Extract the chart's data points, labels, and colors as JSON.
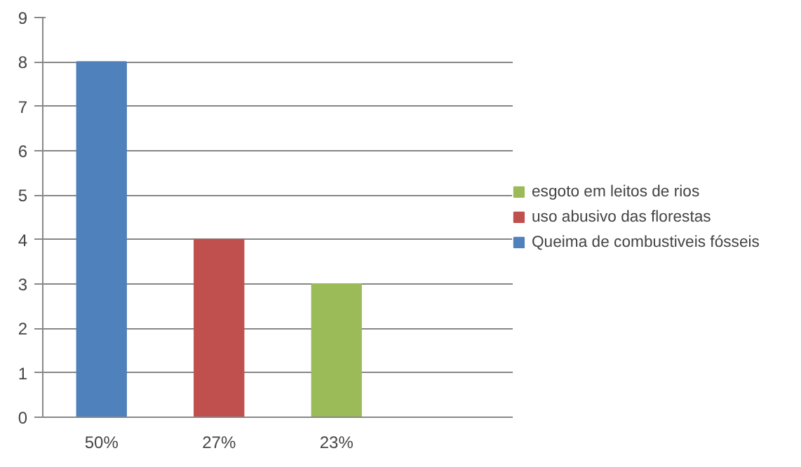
{
  "chart_data": {
    "type": "bar",
    "categories": [
      "50%",
      "27%",
      "23%",
      null
    ],
    "series": [
      {
        "name": "Queima de combustiveis fósseis",
        "color": "#4f81bd",
        "values": [
          8,
          null,
          null,
          null
        ]
      },
      {
        "name": "uso abusivo das florestas",
        "color": "#c0504d",
        "values": [
          null,
          4,
          null,
          null
        ]
      },
      {
        "name": "esgoto em leitos de rios",
        "color": "#9bbb59",
        "values": [
          null,
          null,
          3,
          null
        ]
      }
    ],
    "ylim": [
      0,
      9
    ],
    "yticks": [
      0,
      1,
      2,
      3,
      4,
      5,
      6,
      7,
      8,
      9
    ],
    "grid": "y",
    "legend": "right"
  }
}
